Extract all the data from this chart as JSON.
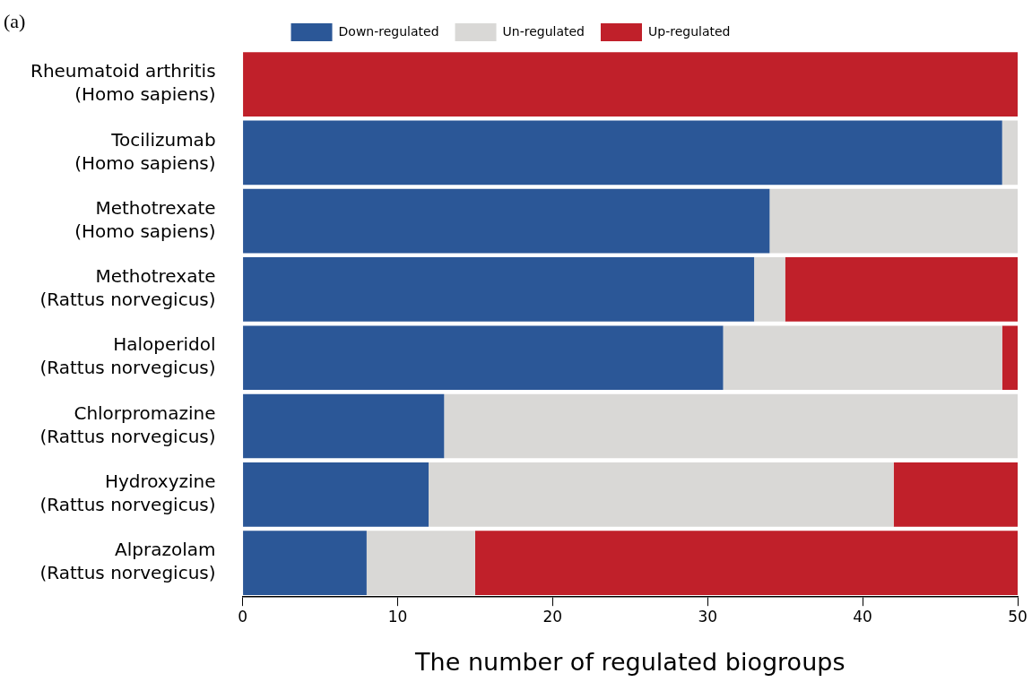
{
  "chart_data": {
    "type": "bar",
    "orientation": "horizontal",
    "stacked": true,
    "title": "(a)",
    "xlabel": "The number of regulated biogroups",
    "categories": [
      "Rheumatoid arthritis\n(Homo sapiens)",
      "Tocilizumab\n(Homo sapiens)",
      "Methotrexate\n(Homo sapiens)",
      "Methotrexate\n(Rattus norvegicus)",
      "Haloperidol\n(Rattus norvegicus)",
      "Chlorpromazine\n(Rattus norvegicus)",
      "Hydroxyzine\n(Rattus norvegicus)",
      "Alprazolam\n(Rattus norvegicus)"
    ],
    "series": [
      {
        "name": "Down-regulated",
        "color": "#2b5797",
        "values": [
          0,
          49,
          34,
          33,
          31,
          13,
          12,
          8
        ]
      },
      {
        "name": "Un-regulated",
        "color": "#d9d8d6",
        "values": [
          0,
          1,
          16,
          2,
          18,
          37,
          30,
          7
        ]
      },
      {
        "name": "Up-regulated",
        "color": "#c0202a",
        "values": [
          50,
          0,
          0,
          15,
          1,
          0,
          8,
          35
        ]
      }
    ],
    "xlim": [
      0,
      50
    ],
    "xticks": [
      0,
      10,
      20,
      30,
      40,
      50
    ],
    "grid": false,
    "legend": "top"
  }
}
